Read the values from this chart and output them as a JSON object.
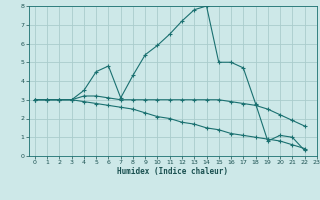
{
  "xlabel": "Humidex (Indice chaleur)",
  "xlim": [
    -0.5,
    23
  ],
  "ylim": [
    0,
    8
  ],
  "bg_color": "#cde8e8",
  "grid_color": "#aacccc",
  "line_color": "#1a7070",
  "line1_x": [
    0,
    1,
    2,
    3,
    4,
    5,
    6,
    7,
    8,
    9,
    10,
    11,
    12,
    13,
    14,
    15,
    16,
    17,
    18,
    19,
    20,
    21,
    22
  ],
  "line1_y": [
    3,
    3,
    3,
    3,
    3.5,
    4.5,
    4.8,
    3.1,
    4.3,
    5.4,
    5.9,
    6.5,
    7.2,
    7.8,
    8.0,
    5.0,
    5.0,
    4.7,
    2.8,
    0.8,
    1.1,
    1.0,
    0.3
  ],
  "line2_x": [
    0,
    1,
    2,
    3,
    4,
    5,
    6,
    7,
    8,
    9,
    10,
    11,
    12,
    13,
    14,
    15,
    16,
    17,
    18,
    19,
    20,
    21,
    22
  ],
  "line2_y": [
    3,
    3,
    3,
    3,
    3.2,
    3.2,
    3.1,
    3.0,
    3.0,
    3.0,
    3.0,
    3.0,
    3.0,
    3.0,
    3.0,
    3.0,
    2.9,
    2.8,
    2.7,
    2.5,
    2.2,
    1.9,
    1.6
  ],
  "line3_x": [
    0,
    1,
    2,
    3,
    4,
    5,
    6,
    7,
    8,
    9,
    10,
    11,
    12,
    13,
    14,
    15,
    16,
    17,
    18,
    19,
    20,
    21,
    22
  ],
  "line3_y": [
    3,
    3,
    3,
    3,
    2.9,
    2.8,
    2.7,
    2.6,
    2.5,
    2.3,
    2.1,
    2.0,
    1.8,
    1.7,
    1.5,
    1.4,
    1.2,
    1.1,
    1.0,
    0.9,
    0.8,
    0.6,
    0.4
  ]
}
